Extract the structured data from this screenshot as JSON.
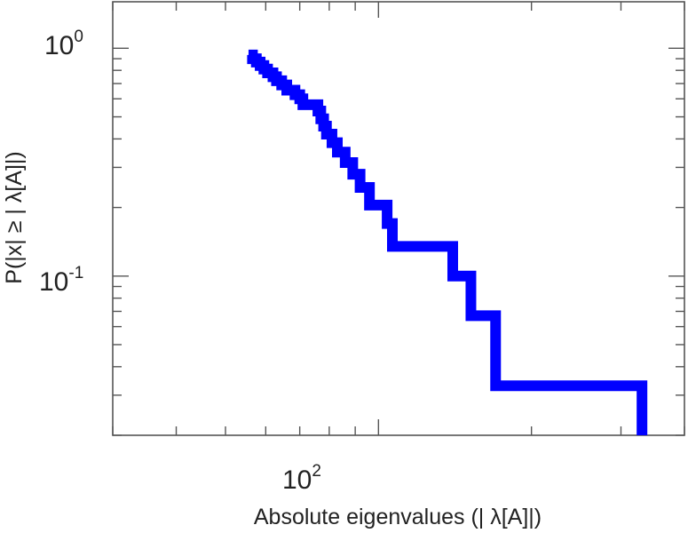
{
  "chart_data": {
    "type": "line",
    "title": "",
    "xlabel": "Absolute eigenvalues (|     λ[A]|)",
    "ylabel": "P(|x|  ≥ | λ[A]|)",
    "xscale": "log",
    "yscale": "log",
    "xlim": [
      30,
      400
    ],
    "ylim": [
      0.02,
      1.6
    ],
    "grid": false,
    "legend": "none",
    "x_ticks": [
      {
        "base": "10",
        "exp": "2",
        "value": 100
      }
    ],
    "y_ticks": [
      {
        "base": "10",
        "exp": "0",
        "value": 1
      },
      {
        "base": "10",
        "exp": "-1",
        "value": 0.1
      }
    ],
    "series": [
      {
        "color": "#0000ff",
        "drawstyle": "steps",
        "points": [
          [
            55.5,
            0.935
          ],
          [
            56.5,
            0.935
          ],
          [
            56.5,
            0.9
          ],
          [
            57.5,
            0.9
          ],
          [
            57.5,
            0.87
          ],
          [
            58.5,
            0.87
          ],
          [
            58.5,
            0.84
          ],
          [
            59.5,
            0.84
          ],
          [
            59.5,
            0.81
          ],
          [
            60.5,
            0.81
          ],
          [
            60.5,
            0.78
          ],
          [
            62.0,
            0.78
          ],
          [
            62.0,
            0.75
          ],
          [
            63.0,
            0.75
          ],
          [
            63.0,
            0.72
          ],
          [
            64.5,
            0.72
          ],
          [
            64.5,
            0.69
          ],
          [
            66.0,
            0.69
          ],
          [
            66.0,
            0.655
          ],
          [
            68.5,
            0.655
          ],
          [
            68.5,
            0.625
          ],
          [
            70.0,
            0.625
          ],
          [
            70.0,
            0.6
          ],
          [
            71.0,
            0.6
          ],
          [
            71.0,
            0.565
          ],
          [
            76.0,
            0.565
          ],
          [
            76.0,
            0.53
          ],
          [
            77.0,
            0.53
          ],
          [
            77.0,
            0.49
          ],
          [
            78.0,
            0.49
          ],
          [
            78.0,
            0.455
          ],
          [
            79.0,
            0.455
          ],
          [
            79.0,
            0.42
          ],
          [
            81.0,
            0.42
          ],
          [
            81.0,
            0.385
          ],
          [
            83.0,
            0.385
          ],
          [
            83.0,
            0.35
          ],
          [
            86.0,
            0.35
          ],
          [
            86.0,
            0.315
          ],
          [
            89.0,
            0.315
          ],
          [
            89.0,
            0.28
          ],
          [
            92.0,
            0.28
          ],
          [
            92.0,
            0.245
          ],
          [
            96.0,
            0.245
          ],
          [
            96.0,
            0.205
          ],
          [
            104.0,
            0.205
          ],
          [
            104.0,
            0.17
          ],
          [
            106.5,
            0.17
          ],
          [
            106.5,
            0.135
          ],
          [
            140.0,
            0.135
          ],
          [
            140.0,
            0.1
          ],
          [
            152.0,
            0.1
          ],
          [
            152.0,
            0.067
          ],
          [
            170.0,
            0.067
          ],
          [
            170.0,
            0.033
          ],
          [
            330.0,
            0.033
          ],
          [
            330.0,
            0.02
          ]
        ]
      }
    ]
  }
}
